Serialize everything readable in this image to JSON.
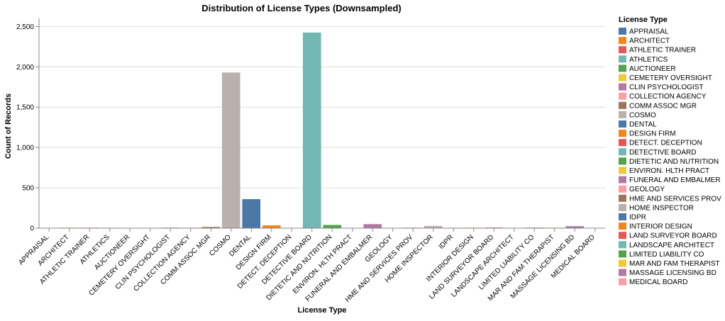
{
  "chart_data": {
    "type": "bar",
    "title": "Distribution of License Types (Downsampled)",
    "xlabel": "License Type",
    "ylabel": "Count of Records",
    "ylim": [
      0,
      2600
    ],
    "yticks": [
      0,
      500,
      1000,
      1500,
      2000,
      2500
    ],
    "ytick_labels": [
      "0",
      "500",
      "1,000",
      "1,500",
      "2,000",
      "2,500"
    ],
    "grid": true,
    "legend_title": "License Type",
    "legend_position": "right",
    "categories": [
      "APPRAISAL",
      "ARCHITECT",
      "ATHLETIC TRAINER",
      "ATHLETICS",
      "AUCTIONEER",
      "CEMETERY OVERSIGHT",
      "CLIN PSYCHOLOGIST",
      "COLLECTION AGENCY",
      "COMM ASSOC MGR",
      "COSMO",
      "DENTAL",
      "DESIGN FIRM",
      "DETECT. DECEPTION",
      "DETECTIVE BOARD",
      "DIETETIC AND NUTRITION",
      "ENVIRON. HLTH PRACT",
      "FUNERAL AND EMBALMER",
      "GEOLOGY",
      "HME AND SERVICES PROV",
      "HOME INSPECTOR",
      "IDPR",
      "INTERIOR DESIGN",
      "LAND SURVEYOR BOARD",
      "LANDSCAPE ARCHITECT",
      "LIMITED LIABILITY CO",
      "MAR AND FAM THERAPIST",
      "MASSAGE LICENSING BD",
      "MEDICAL BOARD"
    ],
    "values": [
      2,
      6,
      6,
      5,
      4,
      1,
      7,
      6,
      15,
      1930,
      360,
      35,
      2,
      2425,
      40,
      4,
      50,
      2,
      6,
      28,
      5,
      6,
      8,
      4,
      7,
      6,
      25,
      4
    ],
    "colors": [
      "#4c78a8",
      "#f58518",
      "#e45756",
      "#72b7b2",
      "#54a24b",
      "#eeca3b",
      "#b279a2",
      "#ff9da6",
      "#9d755d",
      "#bab0ac",
      "#4c78a8",
      "#f58518",
      "#e45756",
      "#72b7b2",
      "#54a24b",
      "#eeca3b",
      "#b279a2",
      "#ff9da6",
      "#9d755d",
      "#bab0ac",
      "#4c78a8",
      "#f58518",
      "#e45756",
      "#72b7b2",
      "#54a24b",
      "#eeca3b",
      "#b279a2",
      "#ff9da6"
    ]
  }
}
